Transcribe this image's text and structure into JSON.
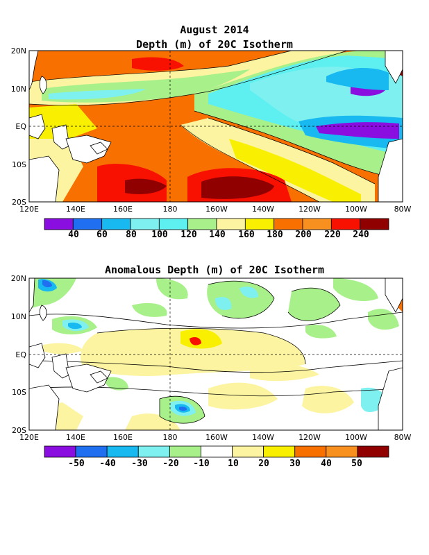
{
  "panel1": {
    "title_line1": "August 2014",
    "title_line2": "Depth (m) of 20C Isotherm",
    "lat_labels": [
      "20N",
      "10N",
      "EQ",
      "10S",
      "20S"
    ],
    "lon_labels": [
      "120E",
      "140E",
      "160E",
      "180",
      "160W",
      "140W",
      "120W",
      "100W",
      "80W"
    ],
    "colorbar_labels": [
      "40",
      "60",
      "80",
      "100",
      "120",
      "140",
      "160",
      "180",
      "200",
      "220",
      "240"
    ],
    "colorbar_colors": [
      "#8a0ee0",
      "#1f6ff0",
      "#18b8f0",
      "#7ff0f0",
      "#5ef0f0",
      "#a8f08a",
      "#fcf4a0",
      "#f8f000",
      "#f87000",
      "#f89020",
      "#f81000",
      "#900000"
    ]
  },
  "panel2": {
    "title": "Anomalous Depth (m) of 20C Isotherm",
    "lat_labels": [
      "20N",
      "10N",
      "EQ",
      "10S",
      "20S"
    ],
    "lon_labels": [
      "120E",
      "140E",
      "160E",
      "180",
      "160W",
      "140W",
      "120W",
      "100W",
      "80W"
    ],
    "colorbar_labels": [
      "-50",
      "-40",
      "-30",
      "-20",
      "-10",
      "10",
      "20",
      "30",
      "40",
      "50"
    ],
    "colorbar_colors": [
      "#8a0ee0",
      "#1f6ff0",
      "#18b8f0",
      "#7ff0f0",
      "#a8f08a",
      "#ffffff",
      "#fcf4a0",
      "#f8f000",
      "#f87000",
      "#f89020",
      "#900000"
    ]
  }
}
